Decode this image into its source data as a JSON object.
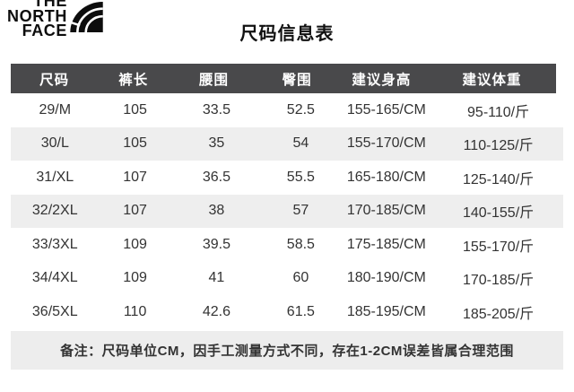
{
  "brand": {
    "line1": "THE",
    "line2": "NORTH",
    "line3": "FACE",
    "icon": "half-dome-icon"
  },
  "title": "尺码信息表",
  "table": {
    "headers": [
      "尺码",
      "裤长",
      "腰围",
      "臀围",
      "建议身高",
      "建议体重"
    ],
    "rows": [
      [
        "29/M",
        "105",
        "33.5",
        "52.5",
        "155-165/CM",
        "95-110/斤"
      ],
      [
        "30/L",
        "105",
        "35",
        "54",
        "155-170/CM",
        "110-125/斤"
      ],
      [
        "31/XL",
        "107",
        "36.5",
        "55.5",
        "165-180/CM",
        "125-140/斤"
      ],
      [
        "32/2XL",
        "107",
        "38",
        "57",
        "170-185/CM",
        "140-155/斤"
      ],
      [
        "33/3XL",
        "109",
        "39.5",
        "58.5",
        "175-185/CM",
        "155-170/斤"
      ],
      [
        "34/4XL",
        "109",
        "41",
        "60",
        "180-190/CM",
        "170-185/斤"
      ],
      [
        "36/5XL",
        "110",
        "42.6",
        "61.5",
        "185-195/CM",
        "185-205/斤"
      ]
    ],
    "striped_row_indices": [
      1,
      3
    ]
  },
  "note": "备注：尺码单位CM，因手工测量方式不同，存在1-2CM误差皆属合理范围",
  "colors": {
    "header_bg": "#49494b",
    "header_text": "#ffffff",
    "stripe_bg": "#eeeeee",
    "note_bg": "#ededed",
    "text": "#333333",
    "logo": "#0d0d0d"
  }
}
